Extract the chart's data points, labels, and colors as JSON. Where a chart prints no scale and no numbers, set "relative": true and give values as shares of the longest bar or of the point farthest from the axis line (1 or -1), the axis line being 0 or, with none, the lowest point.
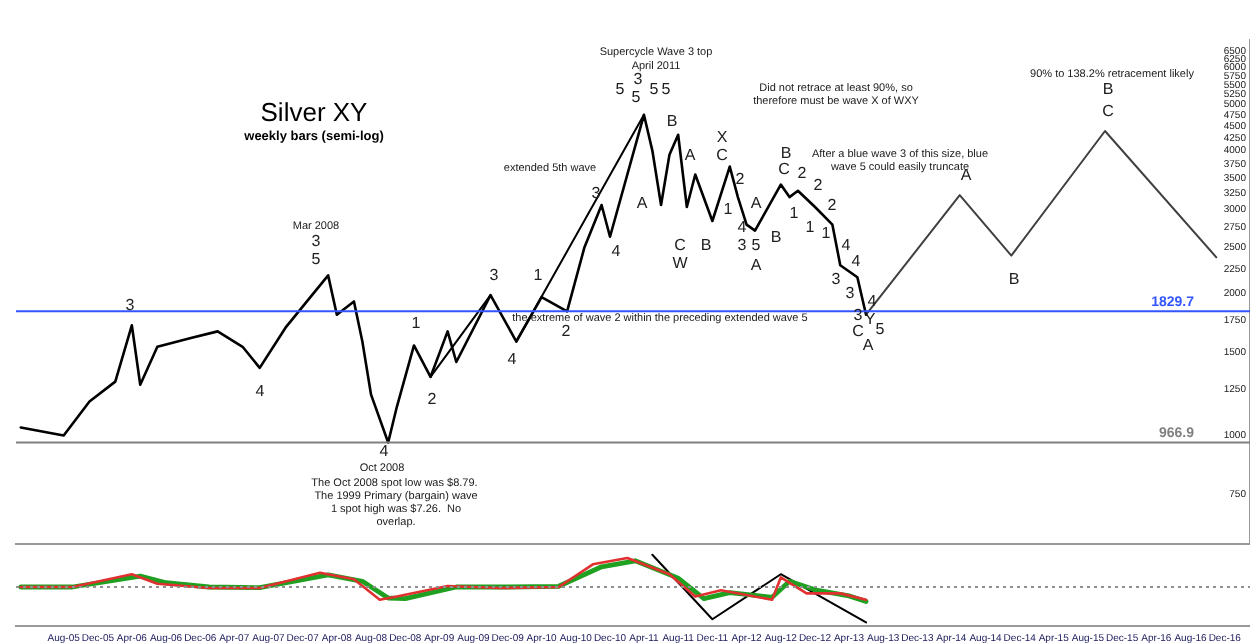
{
  "chart_data": [
    {
      "type": "line",
      "title": "Silver XY",
      "subtitle": "weekly bars (semi-log)",
      "log": true,
      "tick_labels": "y",
      "marker": "none",
      "xlim": [
        "2005-02-12",
        "2017-03"
      ],
      "ylim": [
        590,
        6850
      ],
      "yticks": [
        750,
        1000,
        1250,
        1500,
        1750,
        2000,
        2250,
        2500,
        2750,
        3000,
        3250,
        3500,
        3750,
        4000,
        4250,
        4500,
        4750,
        5000,
        5250,
        5500,
        5750,
        6000,
        6250,
        6500
      ],
      "series": [
        {
          "color": "#000000",
          "x": [
            "2005-03",
            "2005-08",
            "2005-11",
            "2006-02",
            "2006-04",
            "2006-05",
            "2006-07",
            "2006-11",
            "2007-02",
            "2007-05",
            "2007-07",
            "2007-10",
            "2008-03",
            "2008-04",
            "2008-06",
            "2008-07",
            "2008-08",
            "2008-10",
            "2008-11",
            "2009-01",
            "2009-03",
            "2009-05",
            "2009-06",
            "2009-10",
            "2010-01",
            "2010-04",
            "2010-07",
            "2010-09",
            "2010-11",
            "2010-12",
            "2011-04",
            "2011-05",
            "2011-06",
            "2011-07",
            "2011-08",
            "2011-09",
            "2011-10",
            "2011-12",
            "2012-02",
            "2012-03",
            "2012-04",
            "2012-05",
            "2012-08",
            "2012-09",
            "2012-10",
            "2012-12",
            "2013-02",
            "2013-03",
            "2013-05",
            "2013-06"
          ],
          "values": [
            1040,
            1000,
            1180,
            1300,
            1710,
            1280,
            1540,
            1610,
            1660,
            1540,
            1390,
            1690,
            2180,
            1800,
            1920,
            1580,
            1220,
            967,
            1150,
            1550,
            1330,
            1660,
            1430,
            1980,
            1580,
            1960,
            1830,
            2500,
            3070,
            2630,
            4760,
            4000,
            3070,
            3920,
            4320,
            3040,
            3560,
            2840,
            3700,
            3190,
            2790,
            2710,
            3390,
            3190,
            3290,
            3040,
            2790,
            2290,
            2160,
            1800
          ]
        },
        {
          "color": "#404040",
          "x": [
            "2013-06",
            "2014-05",
            "2014-11",
            "2015-10",
            "2016-11"
          ],
          "values": [
            1800,
            3220,
            2400,
            4400,
            2380
          ]
        },
        {
          "color": "#000000",
          "x": [
            "2009-03",
            "2009-10"
          ],
          "values": [
            1330,
            1980
          ]
        },
        {
          "color": "#000000",
          "x": [
            "2010-01",
            "2011-04"
          ],
          "values": [
            1580,
            4760
          ]
        }
      ],
      "ref_lines": [
        {
          "axis": "y",
          "value": 1829.7,
          "label": "1829.7",
          "color": "#3355ff"
        },
        {
          "axis": "y",
          "value": 966.9,
          "label": "966.9",
          "color": "#808080"
        }
      ],
      "annotations": [
        "3",
        "4",
        "Mar 2008",
        "3",
        "5",
        "4",
        "Oct 2008",
        "The Oct 2008 spot low was $8.79.  The 1999 Primary (bargain) wave 1 spot high was $7.26.  No overlap.",
        "1",
        "2",
        "3",
        "4",
        "1",
        "2",
        "3",
        "4",
        "extended 5th wave",
        "Supercycle Wave 3 top",
        "April 2011",
        "5",
        "3",
        "5",
        "5",
        "5",
        "A",
        "B",
        "C",
        "W",
        "A",
        "B",
        "X",
        "C",
        "Did not retrace at least 90%, so therefore must be wave X of WXY",
        "2",
        "1",
        "3",
        "4",
        "A",
        "5",
        "A",
        "B",
        "B",
        "C",
        "2",
        "1",
        "2",
        "1",
        "2",
        "1",
        "After a blue wave 3 of this size, blue wave 5 could easily truncate",
        "4",
        "4",
        "3",
        "3",
        "4",
        "3",
        "Y",
        "C",
        "5",
        "A",
        "the extreme of wave 2 within the preceding extended wave 5",
        "A",
        "B",
        "90% to 138.2% retracement likely",
        "B",
        "C"
      ]
    },
    {
      "type": "line",
      "relative": true,
      "tick_labels": "x",
      "marker": "none",
      "xlim": [
        "2005-02-12",
        "2017-03"
      ],
      "xticks": [
        {
          "value": "2005-08",
          "label": "Aug-05"
        },
        {
          "value": "2005-12",
          "label": "Dec-05"
        },
        {
          "value": "2006-04",
          "label": "Apr-06"
        },
        {
          "value": "2006-08",
          "label": "Aug-06"
        },
        {
          "value": "2006-12",
          "label": "Dec-06"
        },
        {
          "value": "2007-04",
          "label": "Apr-07"
        },
        {
          "value": "2007-08",
          "label": "Aug-07"
        },
        {
          "value": "2007-12",
          "label": "Dec-07"
        },
        {
          "value": "2008-04",
          "label": "Apr-08"
        },
        {
          "value": "2008-08",
          "label": "Aug-08"
        },
        {
          "value": "2008-12",
          "label": "Dec-08"
        },
        {
          "value": "2009-04",
          "label": "Apr-09"
        },
        {
          "value": "2009-08",
          "label": "Aug-09"
        },
        {
          "value": "2009-12",
          "label": "Dec-09"
        },
        {
          "value": "2010-04",
          "label": "Apr-10"
        },
        {
          "value": "2010-08",
          "label": "Aug-10"
        },
        {
          "value": "2010-12",
          "label": "Dec-10"
        },
        {
          "value": "2011-04",
          "label": "Apr-11"
        },
        {
          "value": "2011-08",
          "label": "Aug-11"
        },
        {
          "value": "2011-12",
          "label": "Dec-11"
        },
        {
          "value": "2012-04",
          "label": "Apr-12"
        },
        {
          "value": "2012-08",
          "label": "Aug-12"
        },
        {
          "value": "2012-12",
          "label": "Dec-12"
        },
        {
          "value": "2013-04",
          "label": "Apr-13"
        },
        {
          "value": "2013-08",
          "label": "Aug-13"
        },
        {
          "value": "2013-12",
          "label": "Dec-13"
        },
        {
          "value": "2014-04",
          "label": "Apr-14"
        },
        {
          "value": "2014-08",
          "label": "Aug-14"
        },
        {
          "value": "2014-12",
          "label": "Dec-14"
        },
        {
          "value": "2015-04",
          "label": "Apr-15"
        },
        {
          "value": "2015-08",
          "label": "Aug-15"
        },
        {
          "value": "2015-12",
          "label": "Dec-15"
        },
        {
          "value": "2016-04",
          "label": "Apr-16"
        },
        {
          "value": "2016-08",
          "label": "Aug-16"
        },
        {
          "value": "2016-12",
          "label": "Dec-16"
        }
      ],
      "series": [
        {
          "color": "#e03030",
          "x": [
            "2005-03",
            "2005-09",
            "2006-04",
            "2006-07",
            "2007-01",
            "2007-07",
            "2008-02",
            "2008-06",
            "2008-09",
            "2008-11",
            "2009-05",
            "2009-11",
            "2010-06",
            "2010-10",
            "2011-02",
            "2011-07",
            "2011-10",
            "2012-01",
            "2012-07",
            "2012-08",
            "2012-11",
            "2013-03",
            "2013-06"
          ],
          "values": [
            0,
            0,
            0.36,
            0.09,
            -0.03,
            -0.03,
            0.4,
            0.22,
            -0.36,
            -0.27,
            0.03,
            -0.03,
            0,
            0.64,
            0.82,
            0.36,
            -0.27,
            -0.09,
            -0.36,
            0.27,
            -0.18,
            -0.18,
            -0.36
          ]
        },
        {
          "color": "#20a020",
          "x": [
            "2005-03",
            "2005-09",
            "2006-05",
            "2006-08",
            "2007-01",
            "2007-07",
            "2008-03",
            "2008-07",
            "2008-10",
            "2008-12",
            "2009-06",
            "2009-12",
            "2010-06",
            "2010-11",
            "2011-03",
            "2011-08",
            "2011-11",
            "2012-02",
            "2012-07",
            "2012-09",
            "2012-12",
            "2013-04",
            "2013-06"
          ],
          "values": [
            0,
            0,
            0.31,
            0.12,
            0,
            -0.02,
            0.34,
            0.16,
            -0.31,
            -0.33,
            0,
            0,
            0.02,
            0.57,
            0.74,
            0.25,
            -0.33,
            -0.16,
            -0.29,
            0.16,
            -0.08,
            -0.25,
            -0.41
          ]
        },
        {
          "color": "#000000",
          "x": [
            "2011-05",
            "2011-12",
            "2012-08",
            "2013-06"
          ],
          "values": [
            0.91,
            -0.91,
            0.36,
            -1
          ]
        }
      ],
      "ref_lines": [
        {
          "axis": "y",
          "value": 0,
          "color": "#909090",
          "line_style": "dotted"
        }
      ]
    }
  ]
}
